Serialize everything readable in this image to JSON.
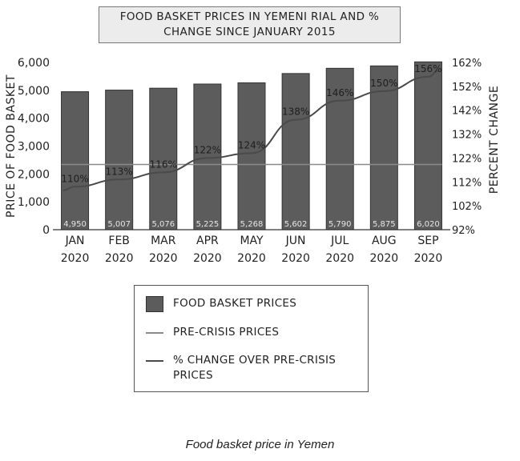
{
  "chart_data": {
    "type": "bar",
    "title_lines": [
      "FOOD BASKET PRICES IN YEMENI RIAL AND %",
      "CHANGE SINCE JANUARY 2015"
    ],
    "categories": [
      [
        "JAN",
        "2020"
      ],
      [
        "FEB",
        "2020"
      ],
      [
        "MAR",
        "2020"
      ],
      [
        "APR",
        "2020"
      ],
      [
        "MAY",
        "2020"
      ],
      [
        "JUN",
        "2020"
      ],
      [
        "JUL",
        "2020"
      ],
      [
        "AUG",
        "2020"
      ],
      [
        "SEP",
        "2020"
      ]
    ],
    "ylabel": "PRICE OF FOOD BASKET",
    "y2label": "PERCENT CHANGE",
    "ylim": [
      0,
      6000
    ],
    "yticks": [
      0,
      1000,
      2000,
      3000,
      4000,
      5000,
      6000
    ],
    "ytick_labels": [
      "0",
      "1,000",
      "2,000",
      "3,000",
      "4,000",
      "5,000",
      "6,000"
    ],
    "y2lim": [
      92,
      162
    ],
    "y2ticks": [
      92,
      102,
      112,
      122,
      132,
      142,
      152,
      162
    ],
    "y2tick_labels": [
      "92%",
      "102%",
      "112%",
      "122%",
      "132%",
      "142%",
      "152%",
      "162%"
    ],
    "grid": false,
    "legend_position": "bottom-center",
    "series": [
      {
        "name": "FOOD BASKET PRICES",
        "kind": "bar",
        "axis": "left",
        "values": [
          4950,
          5007,
          5076,
          5225,
          5268,
          5602,
          5790,
          5875,
          6020
        ],
        "labels": [
          "4,950",
          "5,007",
          "5,076",
          "5,225",
          "5,268",
          "5,602",
          "5,790",
          "5,875",
          "6,020"
        ]
      },
      {
        "name": "PRE-CRISIS PRICES",
        "kind": "line",
        "axis": "left",
        "values": [
          2340,
          2340,
          2340,
          2340,
          2340,
          2340,
          2340,
          2340,
          2340
        ]
      },
      {
        "name_lines": [
          "% CHANGE OVER PRE-CRISIS",
          "PRICES"
        ],
        "kind": "line",
        "axis": "right",
        "values": [
          110,
          113,
          116,
          122,
          124,
          138,
          146,
          150,
          156
        ],
        "labels": [
          "110%",
          "113%",
          "116%",
          "122%",
          "124%",
          "138%",
          "146%",
          "150%",
          "156%"
        ]
      }
    ],
    "colors": {
      "bar": "#5c5c5c",
      "bar_edge": "#333333",
      "precrisis_line": "#8a8a8a",
      "pct_line": "#4a4a4a"
    }
  },
  "caption": "Food basket price in Yemen"
}
